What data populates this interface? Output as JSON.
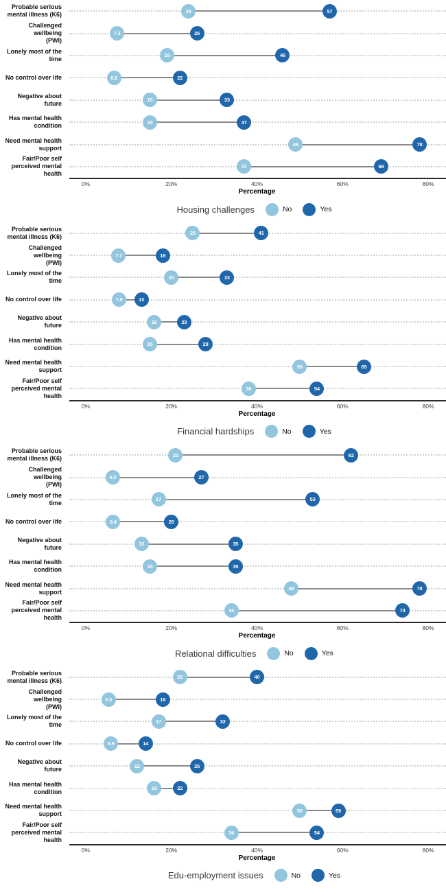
{
  "colors": {
    "no": "#92c5de",
    "yes": "#2066ab",
    "connector": "#8a8a8a",
    "gridline": "#d0d0d0",
    "axis_line": "#2b2b2b"
  },
  "legend": {
    "no_label": "No",
    "yes_label": "Yes"
  },
  "axis": {
    "title": "Percentage",
    "tick_values": [
      0,
      20,
      40,
      60,
      80
    ],
    "tick_labels": [
      "0%",
      "20%",
      "40%",
      "60%",
      "80%"
    ],
    "range": [
      -3.84,
      84.16
    ]
  },
  "chart_data": [
    {
      "type": "dumbbell",
      "title": "Housing challenges",
      "xlabel": "Percentage",
      "xlim": [
        0,
        80
      ],
      "tick_labels": [
        "0%",
        "20%",
        "40%",
        "60%",
        "80%"
      ],
      "categories": [
        "Probable serious\nmental illness (K6)",
        "Challenged wellbeing\n(PWI)",
        "Lonely most of the\ntime",
        "No control over life",
        "Negative about\nfuture",
        "Has mental health\ncondition",
        "Need mental health\nsupport",
        "Fair/Poor self\nperceived mental\nhealth"
      ],
      "series": [
        {
          "name": "No",
          "values": [
            24,
            7.3,
            19,
            6.6,
            15,
            15,
            49,
            37
          ]
        },
        {
          "name": "Yes",
          "values": [
            57,
            26,
            46,
            22,
            33,
            37,
            78,
            69
          ]
        }
      ]
    },
    {
      "type": "dumbbell",
      "title": "Financial hardships",
      "xlabel": "Percentage",
      "xlim": [
        0,
        80
      ],
      "tick_labels": [
        "0%",
        "20%",
        "40%",
        "60%",
        "80%"
      ],
      "categories": [
        "Probable serious\nmental illness (K6)",
        "Challenged wellbeing\n(PWI)",
        "Lonely most of the\ntime",
        "No control over life",
        "Negative about\nfuture",
        "Has mental health\ncondition",
        "Need mental health\nsupport",
        "Fair/Poor self\nperceived mental\nhealth"
      ],
      "series": [
        {
          "name": "No",
          "values": [
            25,
            7.7,
            20,
            7.8,
            16,
            15,
            50,
            38
          ]
        },
        {
          "name": "Yes",
          "values": [
            41,
            18,
            33,
            13,
            23,
            28,
            65,
            54
          ]
        }
      ]
    },
    {
      "type": "dumbbell",
      "title": "Relational difficulties",
      "xlabel": "Percentage",
      "xlim": [
        0,
        80
      ],
      "tick_labels": [
        "0%",
        "20%",
        "40%",
        "60%",
        "80%"
      ],
      "categories": [
        "Probable serious\nmental illness (K6)",
        "Challenged wellbeing\n(PWI)",
        "Lonely most of the\ntime",
        "No control over life",
        "Negative about\nfuture",
        "Has mental health\ncondition",
        "Need mental health\nsupport",
        "Fair/Poor self\nperceived mental\nhealth"
      ],
      "series": [
        {
          "name": "No",
          "values": [
            21,
            6.3,
            17,
            6.4,
            13,
            15,
            48,
            34
          ]
        },
        {
          "name": "Yes",
          "values": [
            62,
            27,
            53,
            20,
            35,
            35,
            78,
            74
          ]
        }
      ]
    },
    {
      "type": "dumbbell",
      "title": "Edu-employment issues",
      "xlabel": "Percentage",
      "xlim": [
        0,
        80
      ],
      "tick_labels": [
        "0%",
        "20%",
        "40%",
        "60%",
        "80%"
      ],
      "categories": [
        "Probable serious\nmental illness (K6)",
        "Challenged wellbeing\n(PWI)",
        "Lonely most of the\ntime",
        "No control over life",
        "Negative about\nfuture",
        "Has mental health\ncondition",
        "Need mental health\nsupport",
        "Fair/Poor self\nperceived mental\nhealth"
      ],
      "series": [
        {
          "name": "No",
          "values": [
            22,
            5.3,
            17,
            5.9,
            12,
            16,
            50,
            34
          ]
        },
        {
          "name": "Yes",
          "values": [
            40,
            18,
            32,
            14,
            26,
            22,
            59,
            54
          ]
        }
      ]
    }
  ]
}
